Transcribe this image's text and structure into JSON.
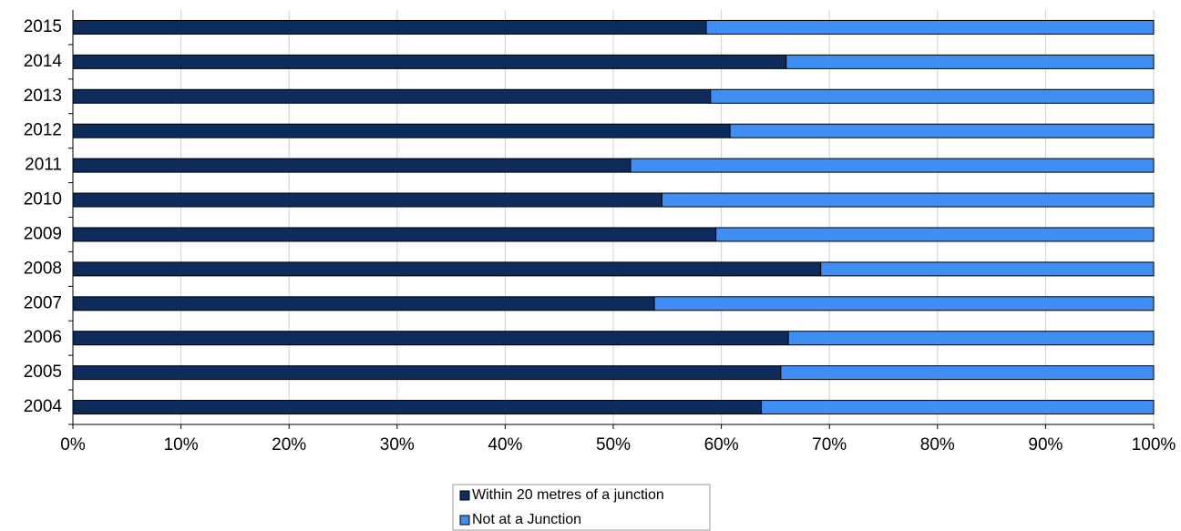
{
  "chart_data": {
    "type": "stacked_bar_horizontal",
    "categories": [
      "2004",
      "2005",
      "2006",
      "2007",
      "2008",
      "2009",
      "2010",
      "2011",
      "2012",
      "2013",
      "2014",
      "2015"
    ],
    "series": [
      {
        "name": "Within 20 metres of a junction",
        "color": "#0d2c5c",
        "values": [
          63.7,
          65.5,
          66.2,
          53.8,
          69.2,
          59.5,
          54.5,
          51.6,
          60.8,
          59.0,
          66.0,
          58.6
        ]
      },
      {
        "name": "Not at a Junction",
        "color": "#3f8ef3",
        "values": [
          36.3,
          34.5,
          33.8,
          46.2,
          30.8,
          40.5,
          45.5,
          48.4,
          39.2,
          41.0,
          34.0,
          41.4
        ]
      }
    ],
    "xlim": [
      0,
      100
    ],
    "xticks": [
      {
        "value": 0,
        "label": "0%"
      },
      {
        "value": 10,
        "label": "10%"
      },
      {
        "value": 20,
        "label": "20%"
      },
      {
        "value": 30,
        "label": "30%"
      },
      {
        "value": 40,
        "label": "40%"
      },
      {
        "value": 50,
        "label": "50%"
      },
      {
        "value": 60,
        "label": "60%"
      },
      {
        "value": 70,
        "label": "70%"
      },
      {
        "value": 80,
        "label": "80%"
      },
      {
        "value": 90,
        "label": "90%"
      },
      {
        "value": 100,
        "label": "100%"
      }
    ],
    "grid": true,
    "legend": "bottom"
  }
}
